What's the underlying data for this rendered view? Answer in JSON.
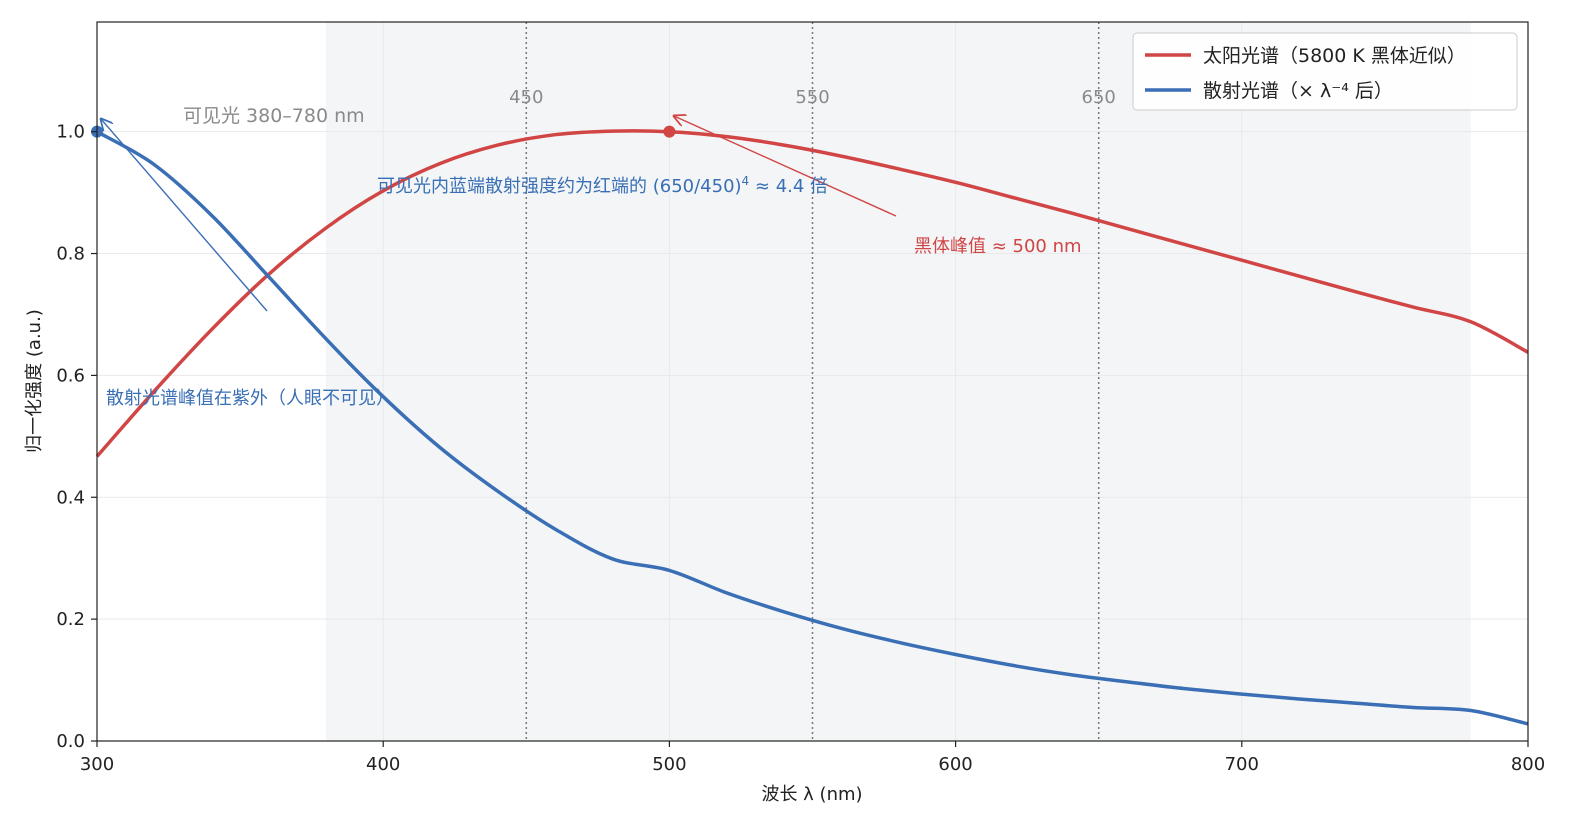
{
  "chart_data": {
    "type": "line",
    "xlabel": "波长 λ (nm)",
    "ylabel": "归一化强度 (a.u.)",
    "xlim": [
      300,
      800
    ],
    "ylim": [
      0,
      1.18
    ],
    "grid": true,
    "x_ticks": [
      "300",
      "400",
      "500",
      "600",
      "700",
      "800"
    ],
    "y_ticks": [
      "0.0",
      "0.2",
      "0.4",
      "0.6",
      "0.8",
      "1.0"
    ],
    "legend_position": "top-right",
    "visible_band": {
      "label": "可见光 380–780 nm",
      "x_range": [
        380,
        780
      ]
    },
    "reference_lines": [
      {
        "x": 450,
        "label": "450"
      },
      {
        "x": 550,
        "label": "550"
      },
      {
        "x": 650,
        "label": "650"
      }
    ],
    "series": [
      {
        "name": "太阳光谱（5800 K 黑体近似）",
        "color": "#d14545",
        "x": [
          300,
          320,
          340,
          360,
          380,
          400,
          420,
          440,
          460,
          480,
          500,
          520,
          540,
          560,
          580,
          600,
          620,
          640,
          660,
          680,
          700,
          720,
          740,
          760,
          780,
          800
        ],
        "values": [
          0.467,
          0.574,
          0.675,
          0.766,
          0.842,
          0.903,
          0.948,
          0.978,
          0.995,
          1.001,
          1.0,
          0.992,
          0.978,
          0.96,
          0.939,
          0.917,
          0.892,
          0.867,
          0.841,
          0.815,
          0.789,
          0.763,
          0.737,
          0.712,
          0.688,
          0.638
        ]
      },
      {
        "name": "散射光谱（× λ⁻⁴ 后）",
        "color": "#3a6fb5",
        "x": [
          300,
          320,
          340,
          360,
          380,
          400,
          420,
          440,
          460,
          480,
          500,
          520,
          540,
          560,
          580,
          600,
          620,
          640,
          660,
          680,
          700,
          720,
          740,
          760,
          780,
          800
        ],
        "values": [
          1.0,
          0.946,
          0.863,
          0.762,
          0.66,
          0.565,
          0.481,
          0.41,
          0.348,
          0.299,
          0.28,
          0.243,
          0.212,
          0.185,
          0.162,
          0.142,
          0.124,
          0.109,
          0.097,
          0.086,
          0.077,
          0.069,
          0.062,
          0.055,
          0.05,
          0.028
        ]
      }
    ],
    "markers": [
      {
        "series": 0,
        "x": 500,
        "y": 1.0
      },
      {
        "series": 1,
        "x": 300,
        "y": 1.0
      }
    ],
    "annotations": {
      "peak_label": "黑体峰值 ≈ 500 nm",
      "scatter_peak_label": "散射光谱峰值在紫外（人眼不可见）",
      "ratio_prefix": "可见光内蓝端散射强度约为红端的 (650/450)",
      "ratio_exponent": "4",
      "ratio_suffix": " ≈ 4.4 倍"
    }
  }
}
